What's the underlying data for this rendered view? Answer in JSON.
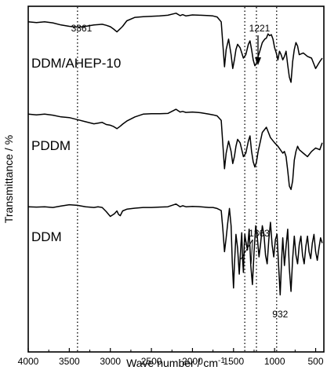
{
  "chart_data": {
    "type": "line",
    "title": "",
    "xlabel": "Wave number / cm",
    "xlabel_sup": "-1",
    "ylabel": "Transmittance / %",
    "xlim": [
      4000,
      400
    ],
    "x_reversed": true,
    "x_ticks": [
      4000,
      3500,
      3000,
      2500,
      2000,
      1500,
      1000,
      500
    ],
    "y_ticks_shown": false,
    "grid": false,
    "legend": "none",
    "line_color": "#000000",
    "series": [
      {
        "name": "DDM/AHEP-10",
        "x": [
          4000,
          3900,
          3800,
          3700,
          3600,
          3500,
          3420,
          3361,
          3300,
          3200,
          3100,
          3050,
          3000,
          2960,
          2920,
          2880,
          2850,
          2800,
          2700,
          2600,
          2500,
          2400,
          2300,
          2200,
          2150,
          2120,
          2080,
          2000,
          1900,
          1800,
          1750,
          1700,
          1650,
          1630,
          1610,
          1590,
          1560,
          1530,
          1510,
          1490,
          1470,
          1450,
          1420,
          1400,
          1380,
          1350,
          1320,
          1300,
          1280,
          1260,
          1240,
          1221,
          1200,
          1180,
          1150,
          1120,
          1100,
          1080,
          1060,
          1040,
          1020,
          1000,
          980,
          960,
          940,
          920,
          900,
          880,
          860,
          840,
          820,
          800,
          780,
          760,
          740,
          720,
          700,
          650,
          600,
          550,
          500,
          450,
          420
        ],
        "y": [
          95.5,
          95.3,
          95.5,
          95.2,
          94.6,
          94.2,
          94.0,
          94.0,
          94.2,
          94.6,
          94.8,
          94.5,
          94.1,
          93.4,
          92.6,
          93.5,
          94.2,
          95.8,
          96.8,
          97.0,
          97.1,
          97.2,
          97.4,
          98.0,
          97.3,
          97.6,
          97.2,
          97.5,
          97.4,
          97.3,
          97.2,
          96.9,
          95.5,
          89.0,
          82.5,
          87.5,
          90.5,
          86.0,
          82.0,
          84.5,
          87.5,
          89.0,
          88.0,
          86.5,
          85.0,
          86.0,
          89.0,
          90.0,
          87.5,
          84.5,
          82.8,
          83.5,
          85.5,
          87.0,
          89.5,
          90.5,
          90.8,
          92.0,
          91.5,
          91.8,
          90.5,
          88.0,
          86.5,
          84.5,
          87.0,
          86.0,
          84.5,
          85.5,
          87.0,
          83.0,
          79.5,
          78.0,
          84.0,
          87.5,
          89.5,
          88.5,
          86.0,
          86.5,
          85.5,
          85.0,
          82.0,
          84.0,
          85.0
        ]
      },
      {
        "name": "PDDM",
        "x": [
          4000,
          3900,
          3800,
          3700,
          3600,
          3500,
          3400,
          3300,
          3200,
          3150,
          3100,
          3050,
          3000,
          2960,
          2920,
          2880,
          2850,
          2800,
          2700,
          2600,
          2500,
          2400,
          2300,
          2200,
          2150,
          2120,
          2080,
          2000,
          1900,
          1800,
          1750,
          1700,
          1650,
          1630,
          1610,
          1590,
          1560,
          1530,
          1510,
          1490,
          1470,
          1450,
          1420,
          1400,
          1380,
          1350,
          1320,
          1300,
          1280,
          1260,
          1240,
          1220,
          1200,
          1150,
          1100,
          1050,
          1000,
          960,
          930,
          900,
          880,
          860,
          840,
          820,
          800,
          780,
          760,
          740,
          720,
          700,
          650,
          600,
          550,
          500,
          450,
          420
        ],
        "y": [
          68.8,
          68.6,
          68.8,
          68.5,
          68.0,
          67.8,
          67.2,
          66.6,
          66.0,
          66.2,
          66.4,
          65.8,
          65.6,
          65.2,
          64.6,
          65.3,
          65.9,
          66.8,
          68.0,
          68.8,
          68.9,
          68.9,
          69.0,
          70.2,
          69.4,
          69.6,
          69.3,
          69.4,
          69.2,
          68.8,
          68.6,
          68.3,
          67.0,
          60.0,
          53.0,
          57.5,
          61.0,
          58.0,
          54.5,
          56.5,
          59.5,
          61.5,
          60.5,
          58.5,
          56.5,
          57.5,
          61.0,
          62.5,
          58.0,
          55.0,
          53.5,
          55.0,
          58.0,
          63.5,
          65.0,
          62.0,
          60.5,
          59.5,
          58.5,
          57.5,
          58.0,
          56.5,
          52.5,
          48.0,
          47.0,
          49.5,
          55.5,
          58.0,
          59.5,
          58.5,
          57.5,
          56.5,
          58.0,
          59.0,
          58.5,
          60.5
        ]
      },
      {
        "name": "DDM",
        "x": [
          4000,
          3900,
          3800,
          3700,
          3600,
          3500,
          3400,
          3300,
          3200,
          3150,
          3100,
          3050,
          3000,
          2950,
          2920,
          2900,
          2880,
          2850,
          2800,
          2700,
          2600,
          2500,
          2400,
          2300,
          2200,
          2150,
          2120,
          2080,
          2000,
          1900,
          1800,
          1750,
          1700,
          1650,
          1630,
          1610,
          1590,
          1570,
          1550,
          1530,
          1515,
          1500,
          1490,
          1470,
          1450,
          1430,
          1410,
          1400,
          1390,
          1380,
          1370,
          1363,
          1350,
          1330,
          1310,
          1290,
          1270,
          1250,
          1230,
          1210,
          1190,
          1170,
          1150,
          1130,
          1110,
          1090,
          1070,
          1050,
          1030,
          1010,
          990,
          970,
          950,
          932,
          915,
          900,
          880,
          860,
          840,
          820,
          800,
          780,
          760,
          740,
          720,
          700,
          680,
          660,
          640,
          620,
          600,
          580,
          560,
          540,
          520,
          500,
          480,
          460,
          440,
          420
        ],
        "y": [
          42.0,
          41.9,
          42.0,
          41.8,
          42.2,
          42.6,
          42.4,
          42.0,
          41.8,
          42.0,
          41.8,
          40.6,
          39.2,
          40.0,
          40.8,
          39.8,
          39.4,
          40.8,
          41.3,
          41.6,
          41.8,
          41.8,
          41.9,
          42.0,
          42.8,
          42.0,
          42.3,
          42.0,
          42.1,
          42.0,
          41.8,
          41.8,
          41.5,
          40.9,
          35.5,
          29.0,
          33.0,
          37.5,
          41.5,
          36.5,
          26.0,
          18.5,
          25.0,
          34.0,
          30.0,
          22.5,
          31.0,
          34.5,
          27.0,
          23.0,
          30.5,
          34.0,
          32.0,
          29.5,
          35.5,
          25.0,
          19.5,
          29.0,
          36.5,
          33.0,
          27.5,
          31.5,
          36.5,
          34.0,
          28.0,
          25.5,
          32.5,
          37.5,
          31.0,
          27.5,
          32.5,
          34.0,
          24.5,
          16.5,
          26.5,
          33.0,
          25.0,
          30.5,
          35.5,
          24.0,
          17.5,
          27.0,
          33.5,
          28.0,
          25.5,
          31.0,
          33.5,
          28.0,
          25.5,
          30.5,
          33.5,
          29.0,
          27.0,
          31.5,
          34.0,
          29.0,
          26.5,
          30.0,
          33.0,
          31.5
        ]
      }
    ],
    "reference_lines_x": [
      3400,
      1363,
      1221,
      975
    ],
    "annotations": [
      {
        "text": "3361",
        "x": 3361
      },
      {
        "text": "1221",
        "x": 1221
      },
      {
        "text": "1363",
        "x": 1363
      },
      {
        "text": "932",
        "x": 932
      }
    ]
  }
}
